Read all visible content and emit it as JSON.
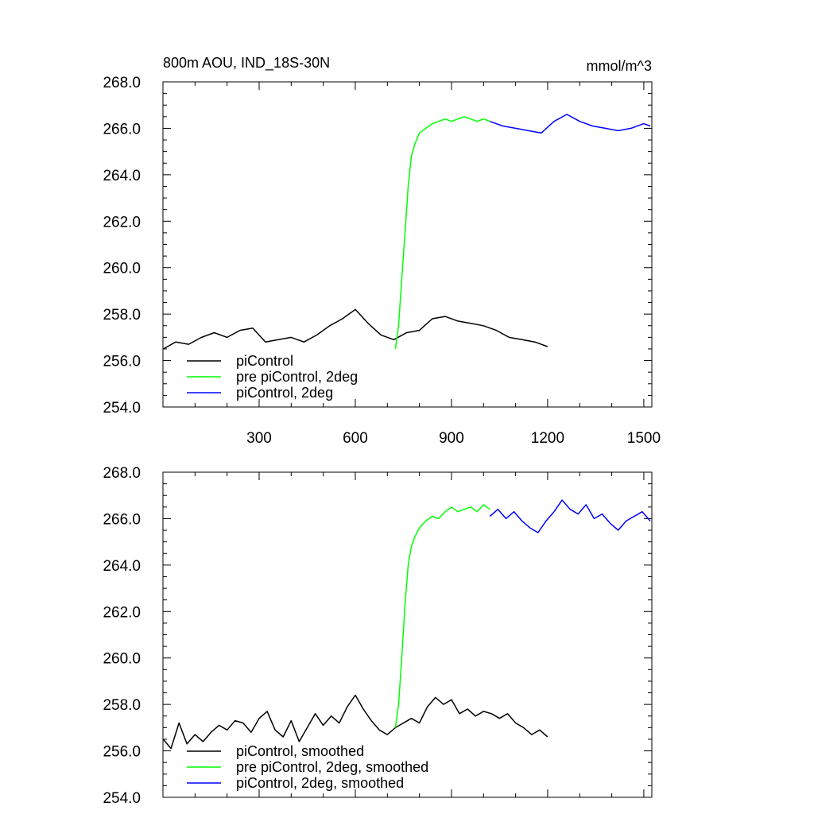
{
  "chart_data": [
    {
      "type": "line",
      "title": "800m AOU, IND_18S-30N",
      "units": "mmol/m^3",
      "xlim": [
        0,
        1525
      ],
      "ylim": [
        254,
        268
      ],
      "xticks": [
        300,
        600,
        900,
        1200,
        1500
      ],
      "xtick_labels": [
        "300",
        "600",
        "900",
        "1200",
        "1500"
      ],
      "yticks": [
        254,
        256,
        258,
        260,
        262,
        264,
        266,
        268
      ],
      "ytick_labels": [
        "254.0",
        "256.0",
        "258.0",
        "260.0",
        "262.0",
        "264.0",
        "266.0",
        "268.0"
      ],
      "legend_position": "bottom-left",
      "series": [
        {
          "name": "piControl",
          "color": "#000000",
          "x": [
            1,
            40,
            80,
            120,
            160,
            200,
            240,
            280,
            320,
            360,
            400,
            440,
            480,
            520,
            560,
            600,
            640,
            680,
            720,
            760,
            800,
            840,
            880,
            920,
            960,
            1000,
            1040,
            1080,
            1120,
            1160,
            1200
          ],
          "y": [
            256.5,
            256.8,
            256.7,
            257.0,
            257.2,
            257.0,
            257.3,
            257.4,
            256.8,
            256.9,
            257.0,
            256.8,
            257.1,
            257.5,
            257.8,
            258.2,
            257.6,
            257.1,
            256.9,
            257.2,
            257.3,
            257.8,
            257.9,
            257.7,
            257.6,
            257.5,
            257.3,
            257.0,
            256.9,
            256.8,
            256.6
          ]
        },
        {
          "name": "pre piControl, 2deg",
          "color": "#00ff00",
          "x": [
            725,
            735,
            745,
            755,
            765,
            775,
            785,
            800,
            820,
            840,
            860,
            880,
            900,
            920,
            940,
            960,
            980,
            1000,
            1020
          ],
          "y": [
            256.5,
            257.5,
            259.5,
            261.5,
            263.5,
            264.8,
            265.3,
            265.8,
            266.0,
            266.2,
            266.3,
            266.4,
            266.3,
            266.4,
            266.5,
            266.4,
            266.3,
            266.4,
            266.3
          ]
        },
        {
          "name": "piControl, 2deg",
          "color": "#0000ff",
          "x": [
            1020,
            1060,
            1100,
            1140,
            1180,
            1220,
            1260,
            1300,
            1340,
            1380,
            1420,
            1460,
            1500,
            1520
          ],
          "y": [
            266.3,
            266.1,
            266.0,
            265.9,
            265.8,
            266.3,
            266.6,
            266.3,
            266.1,
            266.0,
            265.9,
            266.0,
            266.2,
            266.1
          ]
        }
      ]
    },
    {
      "type": "line",
      "xlim": [
        0,
        1525
      ],
      "ylim": [
        254,
        268
      ],
      "xticks": [
        300,
        600,
        900,
        1200,
        1500
      ],
      "yticks": [
        254,
        256,
        258,
        260,
        262,
        264,
        266,
        268
      ],
      "ytick_labels": [
        "254.0",
        "256.0",
        "258.0",
        "260.0",
        "262.0",
        "264.0",
        "266.0",
        "268.0"
      ],
      "legend_position": "bottom-left",
      "series": [
        {
          "name": "piControl, smoothed",
          "color": "#000000",
          "x": [
            1,
            25,
            50,
            75,
            100,
            125,
            150,
            175,
            200,
            225,
            250,
            275,
            300,
            325,
            350,
            375,
            400,
            425,
            450,
            475,
            500,
            525,
            550,
            575,
            600,
            625,
            650,
            675,
            700,
            725,
            750,
            775,
            800,
            825,
            850,
            875,
            900,
            925,
            950,
            975,
            1000,
            1025,
            1050,
            1075,
            1100,
            1125,
            1150,
            1175,
            1200
          ],
          "y": [
            256.5,
            256.1,
            257.2,
            256.3,
            256.7,
            256.4,
            256.8,
            257.1,
            256.9,
            257.3,
            257.2,
            256.8,
            257.4,
            257.7,
            256.9,
            256.6,
            257.3,
            256.4,
            257.0,
            257.6,
            257.1,
            257.5,
            257.2,
            257.9,
            258.4,
            257.8,
            257.3,
            256.9,
            256.7,
            257.0,
            257.2,
            257.4,
            257.2,
            257.9,
            258.3,
            258.0,
            258.2,
            257.6,
            257.8,
            257.5,
            257.7,
            257.6,
            257.4,
            257.6,
            257.2,
            257.0,
            256.7,
            256.9,
            256.6
          ]
        },
        {
          "name": "pre piControl, 2deg, smoothed",
          "color": "#00ff00",
          "x": [
            725,
            735,
            745,
            755,
            765,
            775,
            785,
            800,
            820,
            840,
            860,
            880,
            900,
            920,
            940,
            960,
            980,
            1000,
            1020
          ],
          "y": [
            257.0,
            258.0,
            260.0,
            262.3,
            264.0,
            264.8,
            265.2,
            265.6,
            265.9,
            266.1,
            266.0,
            266.3,
            266.5,
            266.3,
            266.4,
            266.5,
            266.3,
            266.6,
            266.4
          ]
        },
        {
          "name": "piControl, 2deg, smoothed",
          "color": "#0000ff",
          "x": [
            1020,
            1045,
            1070,
            1095,
            1120,
            1145,
            1170,
            1195,
            1220,
            1245,
            1270,
            1295,
            1320,
            1345,
            1370,
            1395,
            1420,
            1445,
            1470,
            1495,
            1520
          ],
          "y": [
            266.1,
            266.4,
            266.0,
            266.3,
            265.9,
            265.6,
            265.4,
            265.9,
            266.3,
            266.8,
            266.4,
            266.2,
            266.6,
            266.0,
            266.2,
            265.8,
            265.5,
            265.9,
            266.1,
            266.3,
            265.9
          ]
        }
      ]
    }
  ]
}
